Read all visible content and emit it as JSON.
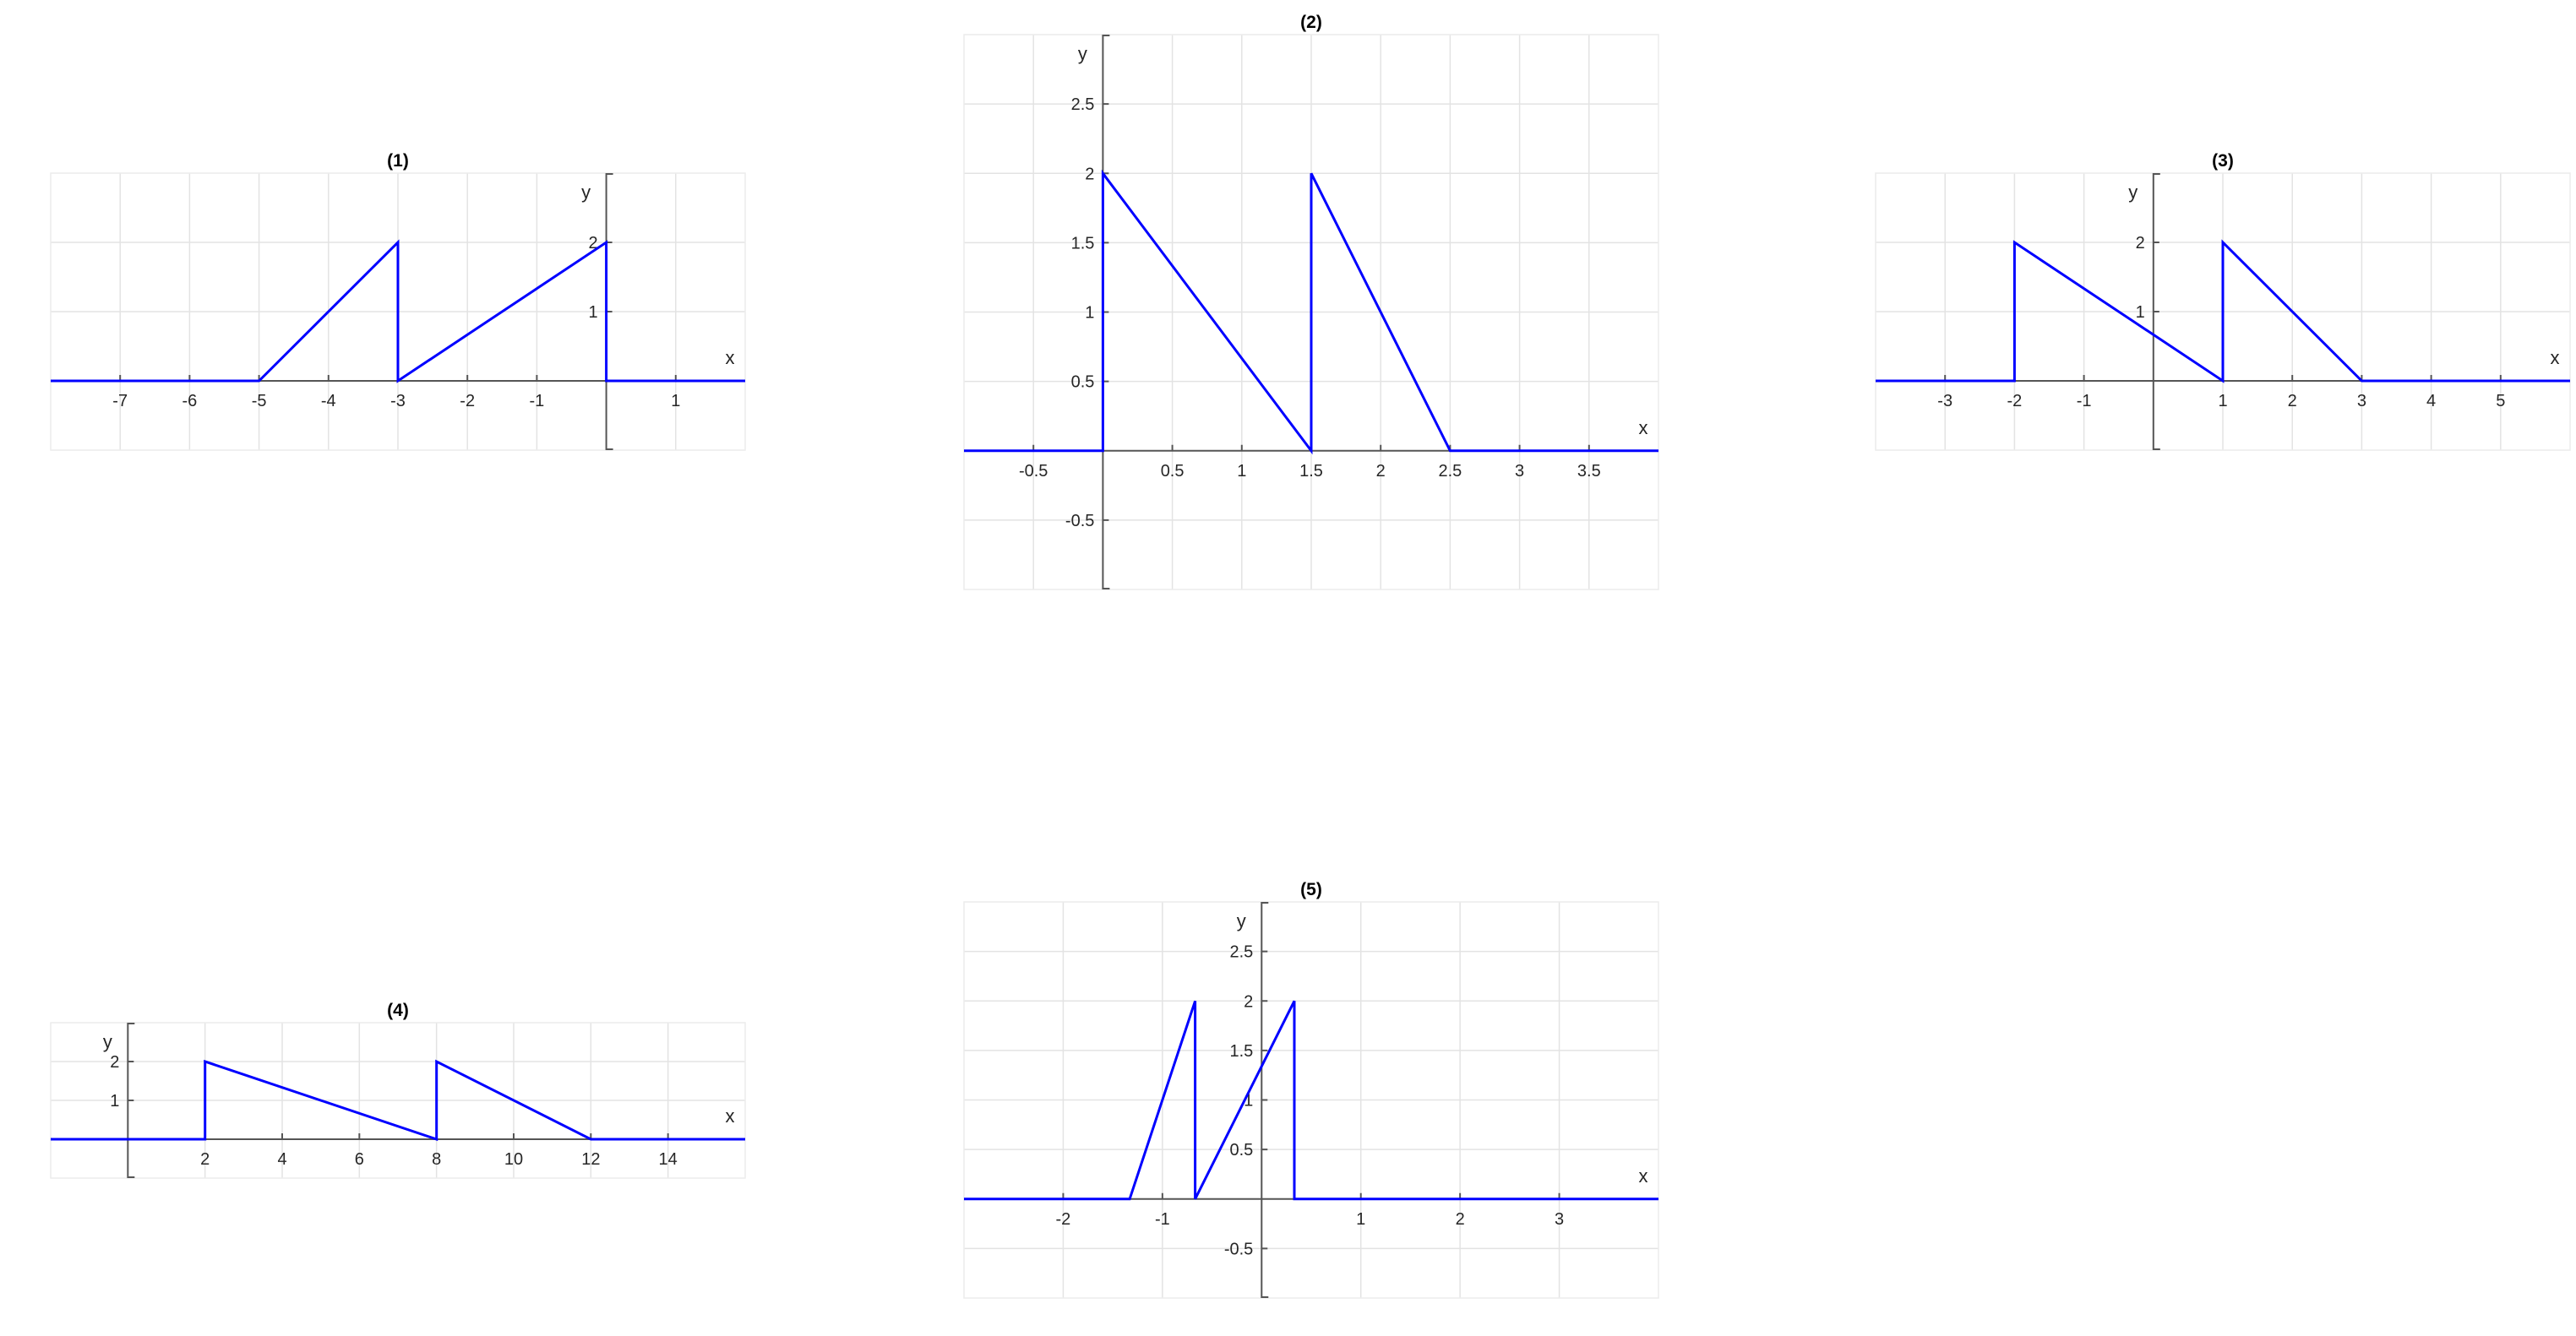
{
  "colors": {
    "series": "#0000ff",
    "grid": "#e3e3e3",
    "axis": "#555555"
  },
  "chart_data": [
    {
      "type": "line",
      "title": "(1)",
      "xlabel": "x",
      "ylabel": "y",
      "xlim": [
        -8,
        2
      ],
      "ylim": [
        -1,
        3
      ],
      "grid": true,
      "x_ticks": [
        -7,
        -6,
        -5,
        -4,
        -3,
        -2,
        -1,
        1
      ],
      "y_ticks": [
        1,
        2
      ],
      "series": [
        {
          "x": [
            -8,
            -5,
            -3,
            -3,
            0,
            0,
            2
          ],
          "y": [
            0,
            0,
            2,
            0,
            2,
            0,
            0
          ]
        }
      ]
    },
    {
      "type": "line",
      "title": "(2)",
      "xlabel": "x",
      "ylabel": "y",
      "xlim": [
        -1,
        4
      ],
      "ylim": [
        -1,
        3
      ],
      "grid": true,
      "x_ticks": [
        -0.5,
        0.5,
        1,
        1.5,
        2,
        2.5,
        3,
        3.5
      ],
      "y_ticks": [
        -0.5,
        0.5,
        1,
        1.5,
        2,
        2.5
      ],
      "series": [
        {
          "x": [
            -1,
            0,
            0,
            1.5,
            1.5,
            2.5,
            4
          ],
          "y": [
            0,
            0,
            2,
            0,
            2,
            0,
            0
          ]
        }
      ]
    },
    {
      "type": "line",
      "title": "(3)",
      "xlabel": "x",
      "ylabel": "y",
      "xlim": [
        -4,
        6
      ],
      "ylim": [
        -1,
        3
      ],
      "grid": true,
      "x_ticks": [
        -3,
        -2,
        -1,
        1,
        2,
        3,
        4,
        5
      ],
      "y_ticks": [
        1,
        2
      ],
      "series": [
        {
          "x": [
            -4,
            -2,
            -2,
            1,
            1,
            3,
            6
          ],
          "y": [
            0,
            0,
            2,
            0,
            2,
            0,
            0
          ]
        }
      ]
    },
    {
      "type": "line",
      "title": "(4)",
      "xlabel": "x",
      "ylabel": "y",
      "xlim": [
        -2,
        16
      ],
      "ylim": [
        -1,
        3
      ],
      "grid": true,
      "x_ticks": [
        2,
        4,
        6,
        8,
        10,
        12,
        14
      ],
      "y_ticks": [
        1,
        2
      ],
      "series": [
        {
          "x": [
            -2,
            2,
            2,
            8,
            8,
            12,
            16
          ],
          "y": [
            0,
            0,
            2,
            0,
            2,
            0,
            0
          ]
        }
      ]
    },
    {
      "type": "line",
      "title": "(5)",
      "xlabel": "x",
      "ylabel": "y",
      "xlim": [
        -3,
        4
      ],
      "ylim": [
        -1,
        3
      ],
      "grid": true,
      "x_ticks": [
        -2,
        -1,
        1,
        2,
        3
      ],
      "y_ticks": [
        -0.5,
        0.5,
        1,
        1.5,
        2,
        2.5
      ],
      "series": [
        {
          "x": [
            -3,
            -1.33,
            -0.67,
            -0.67,
            0.33,
            0.33,
            4
          ],
          "y": [
            0,
            0,
            2,
            0,
            2,
            0,
            0
          ]
        }
      ]
    }
  ]
}
